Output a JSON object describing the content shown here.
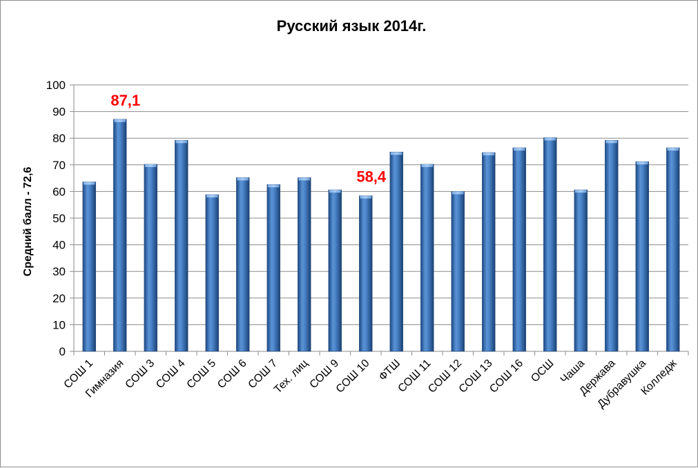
{
  "chart_data": {
    "type": "bar",
    "title": "Русский язык 2014г.",
    "ylabel": "Средний балл - 72,6",
    "xlabel": "",
    "ylim": [
      0,
      100
    ],
    "yticks": [
      "0",
      "10",
      "20",
      "30",
      "40",
      "50",
      "60",
      "70",
      "80",
      "90",
      "100"
    ],
    "grid": true,
    "categories": [
      "СОШ 1",
      "Гимназия",
      "СОШ 3",
      "СОШ 4",
      "СОШ 5",
      "СОШ 6",
      "СОШ 7",
      "Тех. лиц",
      "СОШ 9",
      "СОШ 10",
      "ФТШ",
      "СОШ 11",
      "СОШ 12",
      "СОШ 13",
      "СОШ 16",
      "ОСШ",
      "Чаша",
      "Держава",
      "Дубравушка",
      "Колледж"
    ],
    "values": [
      63.6,
      87.1,
      70.2,
      79.2,
      58.8,
      65.2,
      62.6,
      65.2,
      60.6,
      58.4,
      74.8,
      70.2,
      60.0,
      74.6,
      76.4,
      80.2,
      60.6,
      79.2,
      71.2,
      76.4
    ],
    "annotations": [
      {
        "category": "Гимназия",
        "text": "87,1",
        "color": "#ff0000"
      },
      {
        "category": "СОШ 10",
        "text": "58,4",
        "color": "#ff0000"
      }
    ],
    "bar_color": "#2a5c9e"
  }
}
